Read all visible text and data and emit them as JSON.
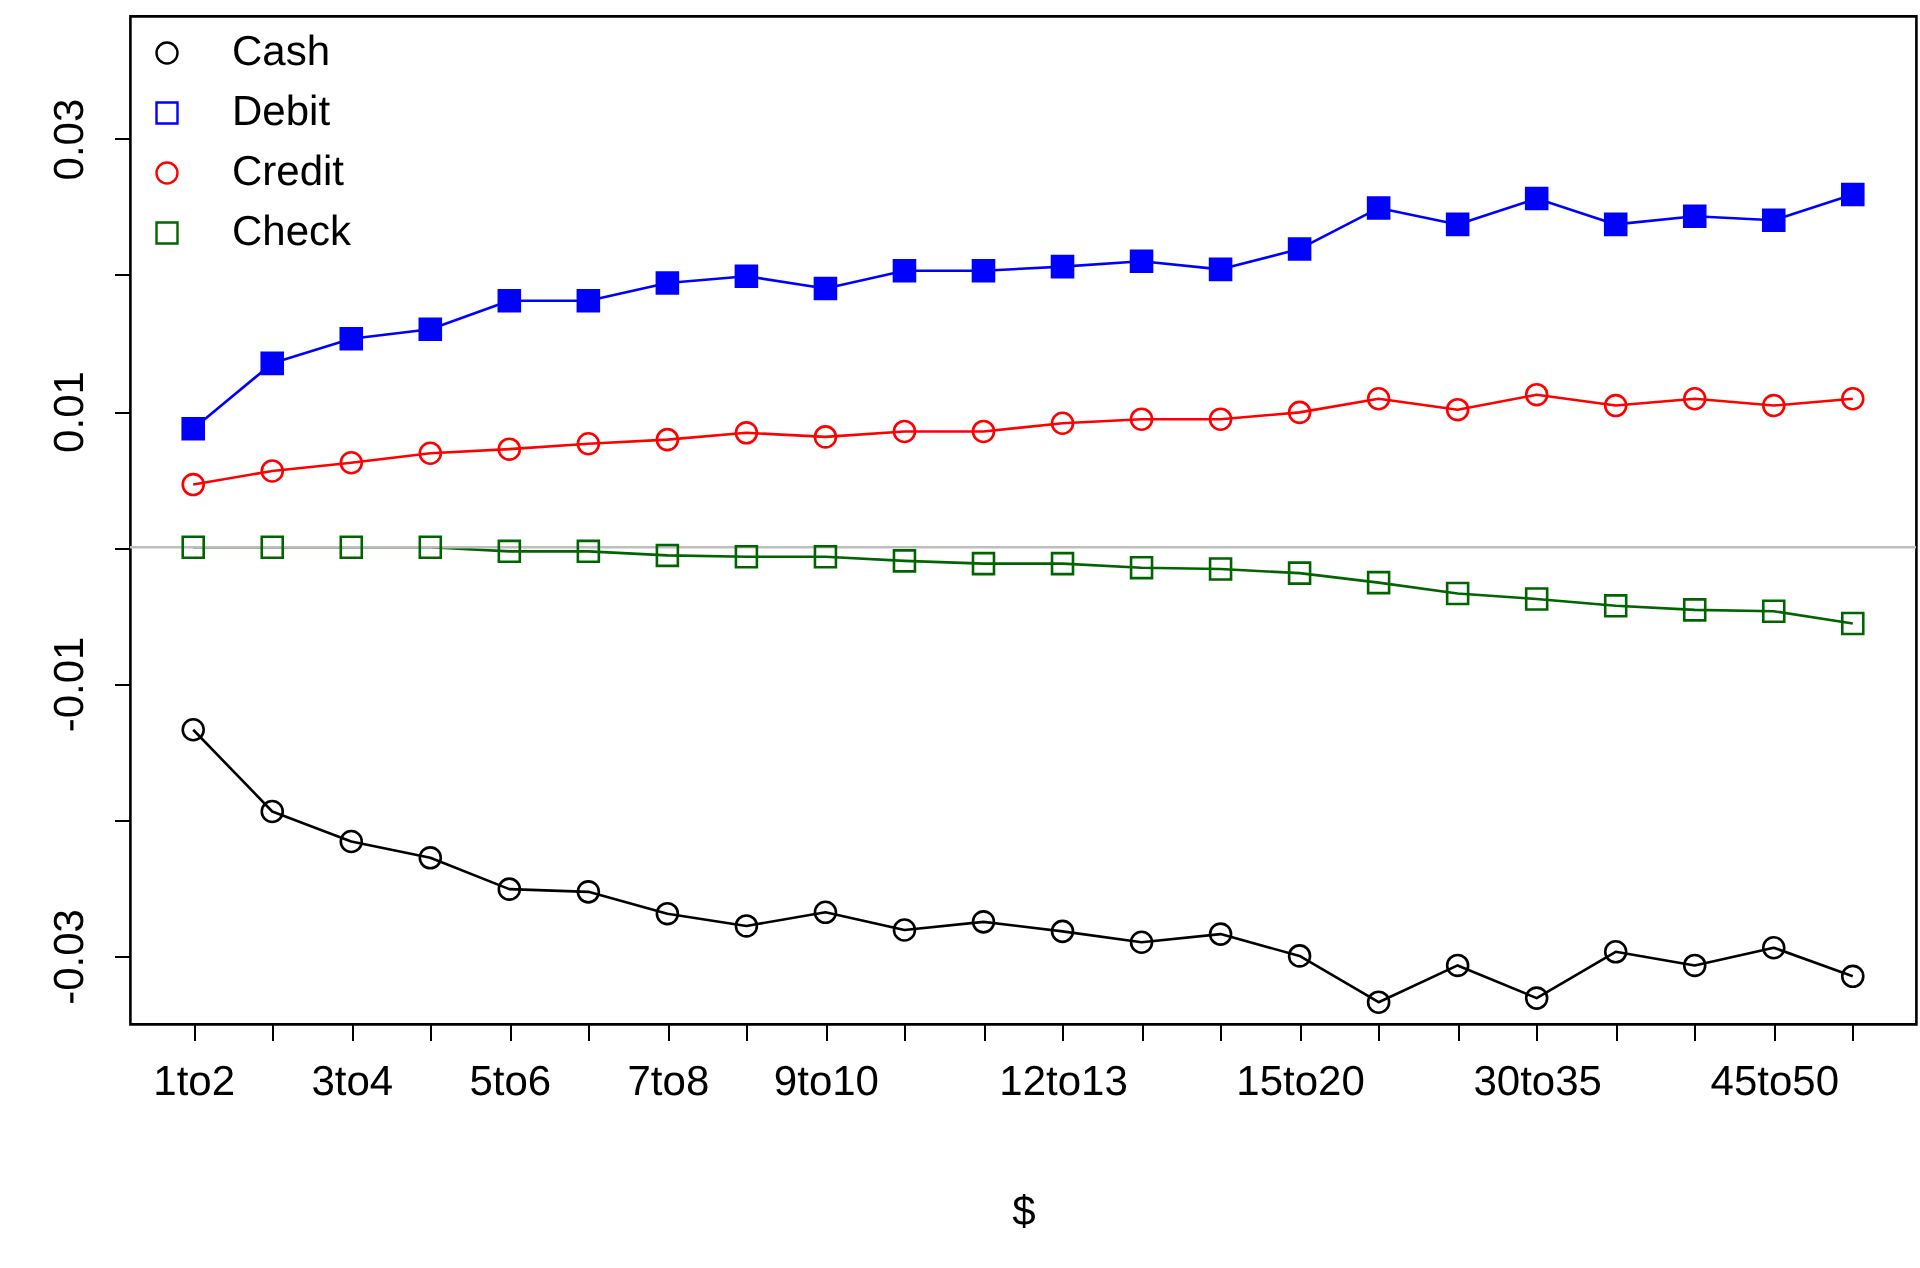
{
  "chart_data": {
    "type": "line",
    "xlabel": "$",
    "categories": [
      "1to2",
      null,
      "3to4",
      null,
      "5to6",
      null,
      "7to8",
      null,
      "9to10",
      null,
      null,
      "12to13",
      null,
      null,
      "15to20",
      null,
      null,
      "30to35",
      null,
      null,
      "45to50",
      null
    ],
    "series": [
      {
        "name": "Cash",
        "color": "#000000",
        "marker": "circle",
        "values": [
          -0.0134,
          -0.0194,
          -0.0216,
          -0.0228,
          -0.0251,
          -0.0253,
          -0.0269,
          -0.0278,
          -0.0268,
          -0.0281,
          -0.0275,
          -0.0282,
          -0.029,
          -0.0284,
          -0.03,
          -0.0334,
          -0.0307,
          -0.0331,
          -0.0297,
          -0.0307,
          -0.0294,
          -0.0315
        ]
      },
      {
        "name": "Debit",
        "color": "#0000ff",
        "marker": "square",
        "values": [
          0.0087,
          0.0135,
          0.0153,
          0.016,
          0.0181,
          0.0181,
          0.0194,
          0.0199,
          0.019,
          0.0203,
          0.0203,
          0.0206,
          0.021,
          0.0204,
          0.0219,
          0.0249,
          0.0237,
          0.0256,
          0.0237,
          0.0243,
          0.024,
          0.0259
        ]
      },
      {
        "name": "Credit",
        "color": "#ff0000",
        "marker": "circle",
        "values": [
          0.0046,
          0.0056,
          0.0062,
          0.0069,
          0.0072,
          0.0076,
          0.0079,
          0.0084,
          0.0081,
          0.0085,
          0.0085,
          0.0091,
          0.0094,
          0.0094,
          0.0099,
          0.0109,
          0.0101,
          0.0112,
          0.0104,
          0.0109,
          0.0104,
          0.0109
        ]
      },
      {
        "name": "Check",
        "color": "#006400",
        "marker": "square",
        "values": [
          0,
          0,
          0,
          0,
          -0.0003,
          -0.0003,
          -0.0006,
          -0.0007,
          -0.0007,
          -0.001,
          -0.0012,
          -0.0012,
          -0.0015,
          -0.0016,
          -0.0019,
          -0.0026,
          -0.0034,
          -0.0038,
          -0.0043,
          -0.0046,
          -0.0047,
          -0.0056
        ]
      }
    ],
    "ylim": [
      -0.035,
      0.039
    ],
    "yticks": [
      -0.03,
      {
        "value": -0.02,
        "label": null
      },
      -0.01,
      {
        "value": 0,
        "label": null
      },
      0.01,
      {
        "value": 0.02,
        "label": null
      },
      0.03
    ],
    "ref_lines": [
      {
        "axis": "y",
        "value": 0,
        "label": null,
        "color": "#bebebe"
      }
    ],
    "legend": "top left",
    "grid": false
  }
}
